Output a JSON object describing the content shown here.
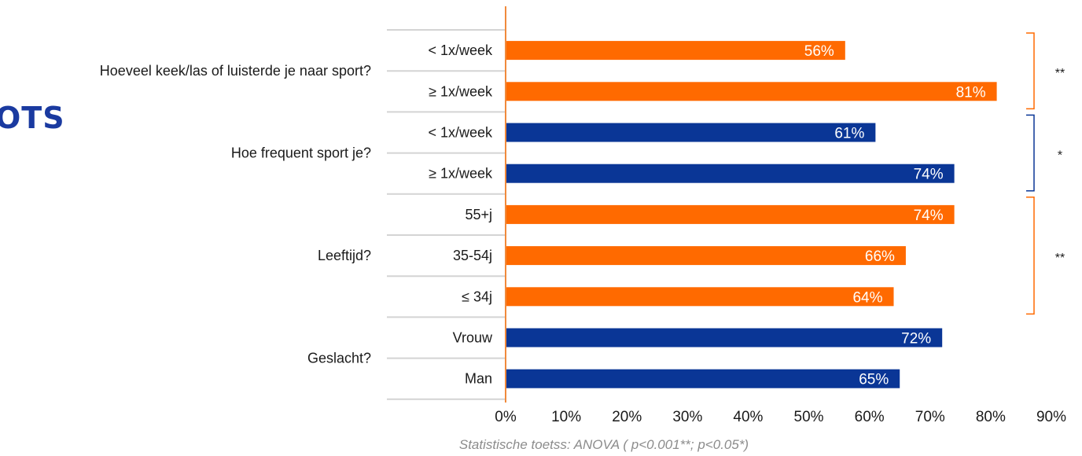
{
  "page": {
    "partial_title": "OTS",
    "footnote": "Statistische toetss: ANOVA ( p<0.001**; p<0.05*)"
  },
  "colors": {
    "orange": "#ff6a00",
    "blue": "#0a3696",
    "axis": "#f08a3c",
    "separator": "#d4d4d4",
    "bar_label": "#ffffff"
  },
  "chart_data": {
    "type": "bar",
    "orientation": "horizontal",
    "xlim": [
      0,
      90
    ],
    "x_ticks": [
      "0%",
      "10%",
      "20%",
      "30%",
      "40%",
      "50%",
      "60%",
      "70%",
      "80%",
      "90%"
    ],
    "grid": false,
    "groups": [
      {
        "label": "Hoeveel keek/las of luisterde je naar sport?",
        "color": "orange",
        "significance": "**",
        "bars": [
          {
            "category": "< 1x/week",
            "value": 56,
            "label": "56%"
          },
          {
            "category": "≥ 1x/week",
            "value": 81,
            "label": "81%"
          }
        ]
      },
      {
        "label": "Hoe frequent sport je?",
        "color": "blue",
        "significance": "*",
        "bars": [
          {
            "category": "< 1x/week",
            "value": 61,
            "label": "61%"
          },
          {
            "category": "≥ 1x/week",
            "value": 74,
            "label": "74%"
          }
        ]
      },
      {
        "label": "Leeftijd?",
        "color": "orange",
        "significance": "**",
        "bars": [
          {
            "category": "55+j",
            "value": 74,
            "label": "74%"
          },
          {
            "category": "35-54j",
            "value": 66,
            "label": "66%"
          },
          {
            "category": "≤ 34j",
            "value": 64,
            "label": "64%"
          }
        ]
      },
      {
        "label": "Geslacht?",
        "color": "blue",
        "significance": "",
        "bars": [
          {
            "category": "Vrouw",
            "value": 72,
            "label": "72%"
          },
          {
            "category": "Man",
            "value": 65,
            "label": "65%"
          }
        ]
      }
    ]
  }
}
